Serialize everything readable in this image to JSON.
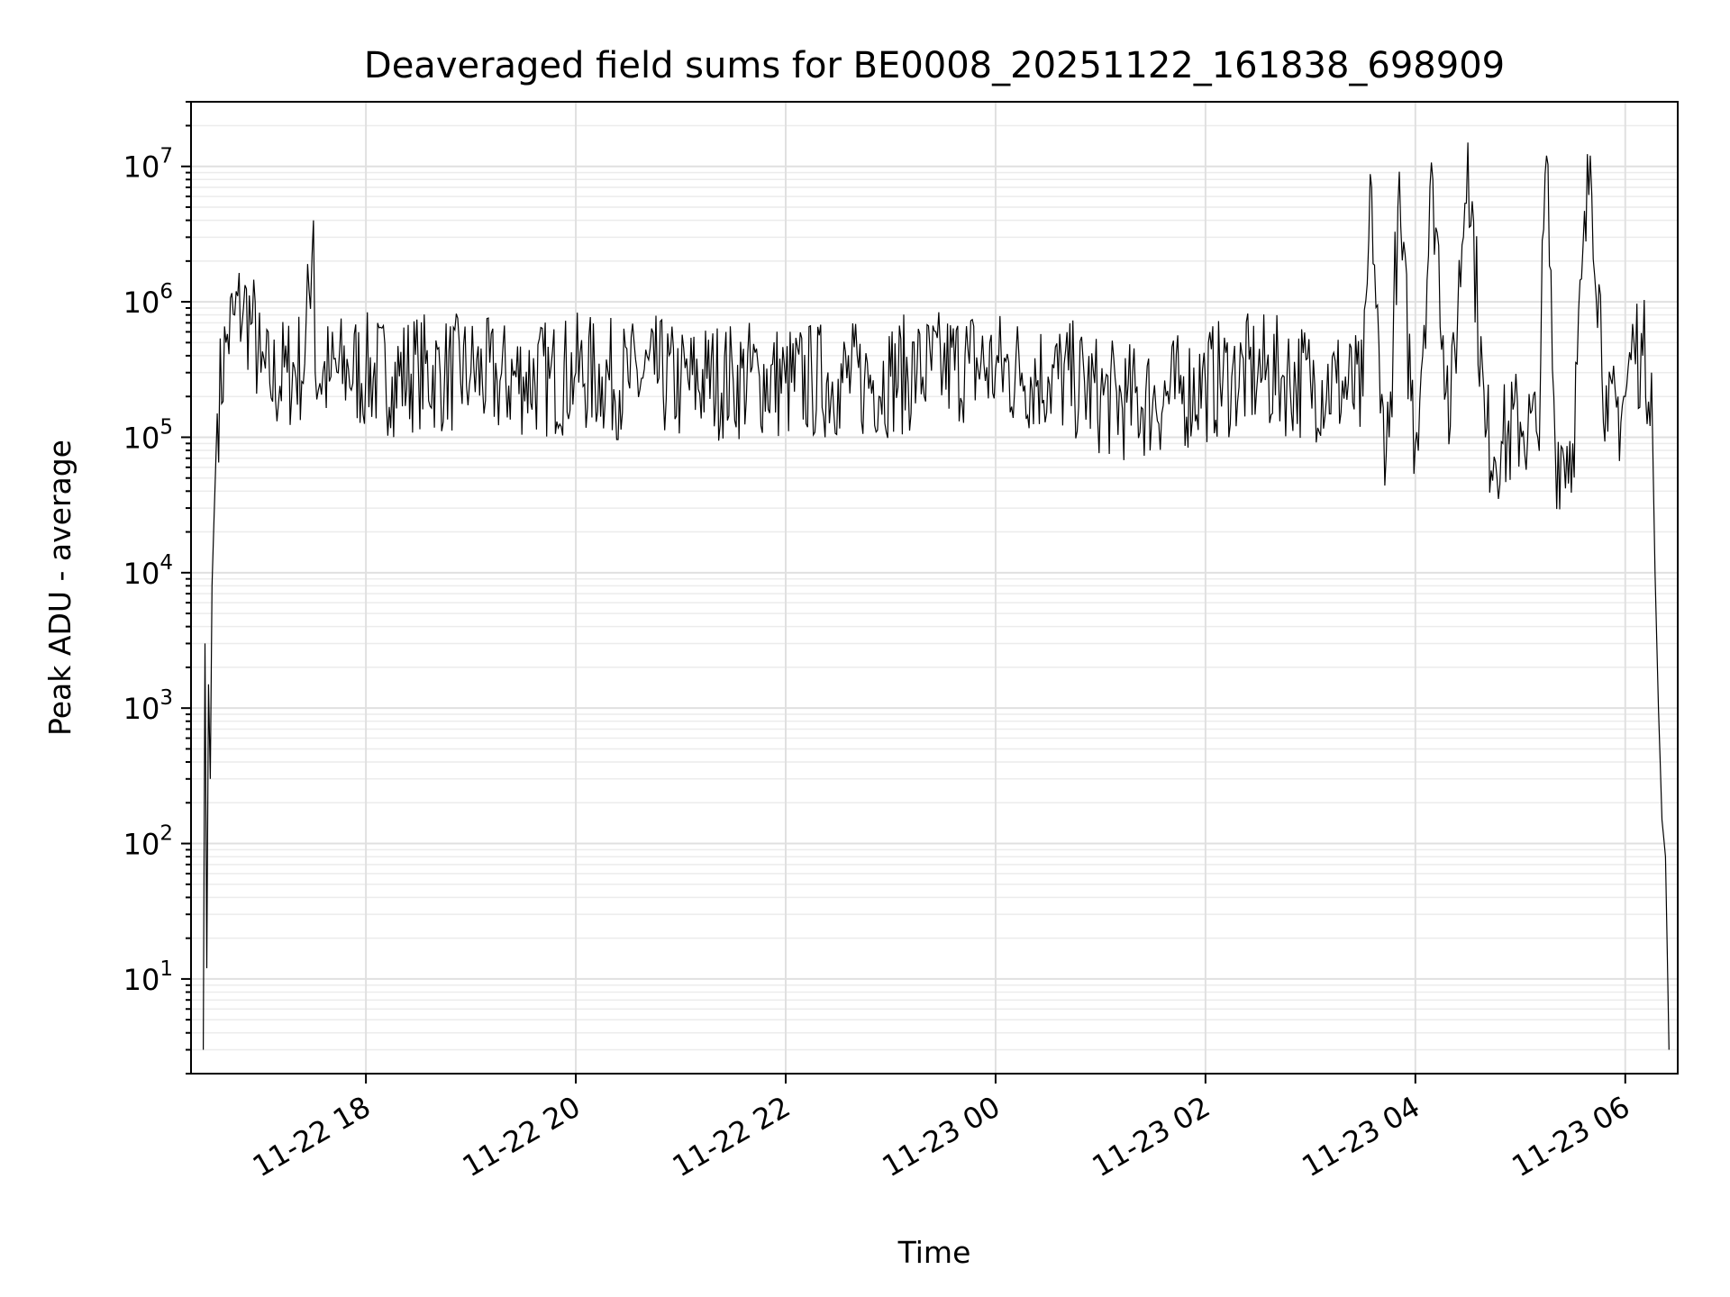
{
  "chart_data": {
    "type": "line",
    "title": "Deaveraged field sums for BE0008_20251122_161838_698909",
    "xlabel": "Time",
    "ylabel": "Peak ADU - average",
    "yscale": "log",
    "ylim": [
      2,
      30000000
    ],
    "xlim": [
      "2025-11-22 16:20",
      "2025-11-23 06:30"
    ],
    "grid": true,
    "line_color": "#000000",
    "x_ticks": [
      "2025-11-22 18:00",
      "2025-11-22 20:00",
      "2025-11-22 22:00",
      "2025-11-23 00:00",
      "2025-11-23 02:00",
      "2025-11-23 04:00",
      "2025-11-23 06:00"
    ],
    "x_tick_labels": [
      "11-22 18",
      "11-22 20",
      "11-22 22",
      "11-23 00",
      "11-23 02",
      "11-23 04",
      "11-23 06"
    ],
    "y_ticks": [
      10,
      100,
      1000,
      10000,
      100000,
      1000000,
      10000000
    ],
    "y_tick_labels": [
      {
        "base": "10",
        "exp": "1"
      },
      {
        "base": "10",
        "exp": "2"
      },
      {
        "base": "10",
        "exp": "3"
      },
      {
        "base": "10",
        "exp": "4"
      },
      {
        "base": "10",
        "exp": "5"
      },
      {
        "base": "10",
        "exp": "6"
      },
      {
        "base": "10",
        "exp": "7"
      }
    ],
    "series": [
      {
        "x": [
          "2025-11-22 16:27",
          "2025-11-22 16:28",
          "2025-11-22 16:29",
          "2025-11-22 16:30",
          "2025-11-22 16:31",
          "2025-11-22 16:32",
          "2025-11-22 16:35",
          "2025-11-22 16:40",
          "2025-11-22 16:45",
          "2025-11-22 16:50",
          "2025-11-22 16:55",
          "2025-11-22 17:00",
          "2025-11-22 17:05",
          "2025-11-22 17:15",
          "2025-11-22 17:25",
          "2025-11-22 17:30",
          "2025-11-22 17:31",
          "2025-11-22 17:40",
          "2025-11-22 17:50",
          "2025-11-22 18:00",
          "2025-11-22 18:15",
          "2025-11-22 18:30",
          "2025-11-22 18:45",
          "2025-11-22 19:00",
          "2025-11-22 19:15",
          "2025-11-22 19:30",
          "2025-11-22 19:45",
          "2025-11-22 20:00",
          "2025-11-22 20:15",
          "2025-11-22 20:30",
          "2025-11-22 20:45",
          "2025-11-22 21:00",
          "2025-11-22 21:15",
          "2025-11-22 21:30",
          "2025-11-22 21:45",
          "2025-11-22 22:00",
          "2025-11-22 22:15",
          "2025-11-22 22:30",
          "2025-11-22 22:45",
          "2025-11-22 23:00",
          "2025-11-22 23:15",
          "2025-11-22 23:30",
          "2025-11-22 23:45",
          "2025-11-23 00:00",
          "2025-11-23 00:15",
          "2025-11-23 00:30",
          "2025-11-23 00:45",
          "2025-11-23 01:00",
          "2025-11-23 01:15",
          "2025-11-23 01:30",
          "2025-11-23 01:45",
          "2025-11-23 02:00",
          "2025-11-23 02:15",
          "2025-11-23 02:30",
          "2025-11-23 02:45",
          "2025-11-23 03:00",
          "2025-11-23 03:15",
          "2025-11-23 03:30",
          "2025-11-23 03:35",
          "2025-11-23 03:40",
          "2025-11-23 03:45",
          "2025-11-23 03:50",
          "2025-11-23 04:00",
          "2025-11-23 04:10",
          "2025-11-23 04:20",
          "2025-11-23 04:30",
          "2025-11-23 04:40",
          "2025-11-23 04:50",
          "2025-11-23 05:00",
          "2025-11-23 05:10",
          "2025-11-23 05:15",
          "2025-11-23 05:20",
          "2025-11-23 05:30",
          "2025-11-23 05:40",
          "2025-11-23 05:50",
          "2025-11-23 06:00",
          "2025-11-23 06:05",
          "2025-11-23 06:10",
          "2025-11-23 06:15",
          "2025-11-23 06:17",
          "2025-11-23 06:19",
          "2025-11-23 06:21",
          "2025-11-23 06:23",
          "2025-11-23 06:25"
        ],
        "y": [
          3,
          3000,
          12,
          1500,
          300,
          8000,
          150000,
          500000,
          800000,
          900000,
          700000,
          300000,
          250000,
          300000,
          350000,
          4000000,
          300000,
          280000,
          320000,
          300000,
          280000,
          310000,
          290000,
          300000,
          260000,
          280000,
          270000,
          300000,
          280000,
          260000,
          290000,
          240000,
          270000,
          260000,
          280000,
          250000,
          260000,
          270000,
          260000,
          280000,
          300000,
          320000,
          350000,
          320000,
          300000,
          280000,
          260000,
          200000,
          180000,
          190000,
          210000,
          250000,
          280000,
          300000,
          280000,
          260000,
          250000,
          200000,
          7000000,
          150000,
          100000,
          5000000,
          90000,
          8000000,
          120000,
          15000000,
          100000,
          90000,
          130000,
          100000,
          12000000,
          80000,
          90000,
          12000000,
          110000,
          200000,
          500000,
          400000,
          300000,
          10000,
          1000,
          150,
          80,
          3
        ]
      }
    ]
  }
}
